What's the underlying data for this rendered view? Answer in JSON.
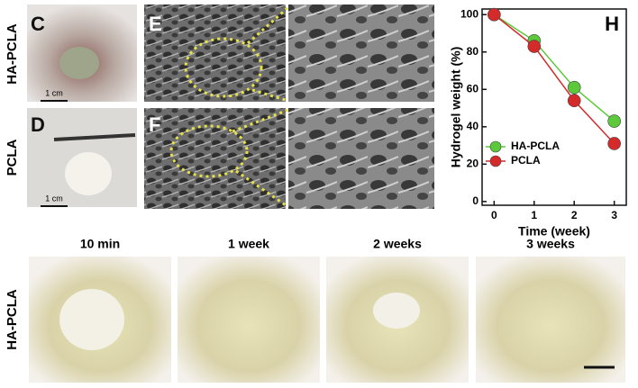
{
  "panel_labels": [
    "C",
    "D",
    "E",
    "F"
  ],
  "row_labels": [
    "HA-PCLA",
    "PCLA"
  ],
  "scale_bars": [
    "1 cm",
    "1 cm"
  ],
  "timepoints": [
    "10 min",
    "1 week",
    "2 weeks",
    "3 weeks"
  ],
  "bottom_row_label": "HA-PCLA",
  "chart_data": {
    "type": "line",
    "label": "H",
    "x_label": "Time (week)",
    "y_label": "Hydrogel weight (%)",
    "x": [
      0,
      1,
      2,
      3
    ],
    "series": [
      {
        "name": "HA-PCLA",
        "color": "#5cc93a",
        "values": [
          100,
          86,
          61,
          43
        ]
      },
      {
        "name": "PCLA",
        "color": "#d42a2a",
        "values": [
          100,
          83,
          54,
          31
        ]
      }
    ],
    "xlim": [
      -0.3,
      3.3
    ],
    "ylim": [
      -2,
      103
    ],
    "xticks": [
      0,
      1,
      2,
      3
    ],
    "yticks": [
      0,
      20,
      40,
      60,
      80,
      100
    ],
    "legend": "lower left"
  }
}
